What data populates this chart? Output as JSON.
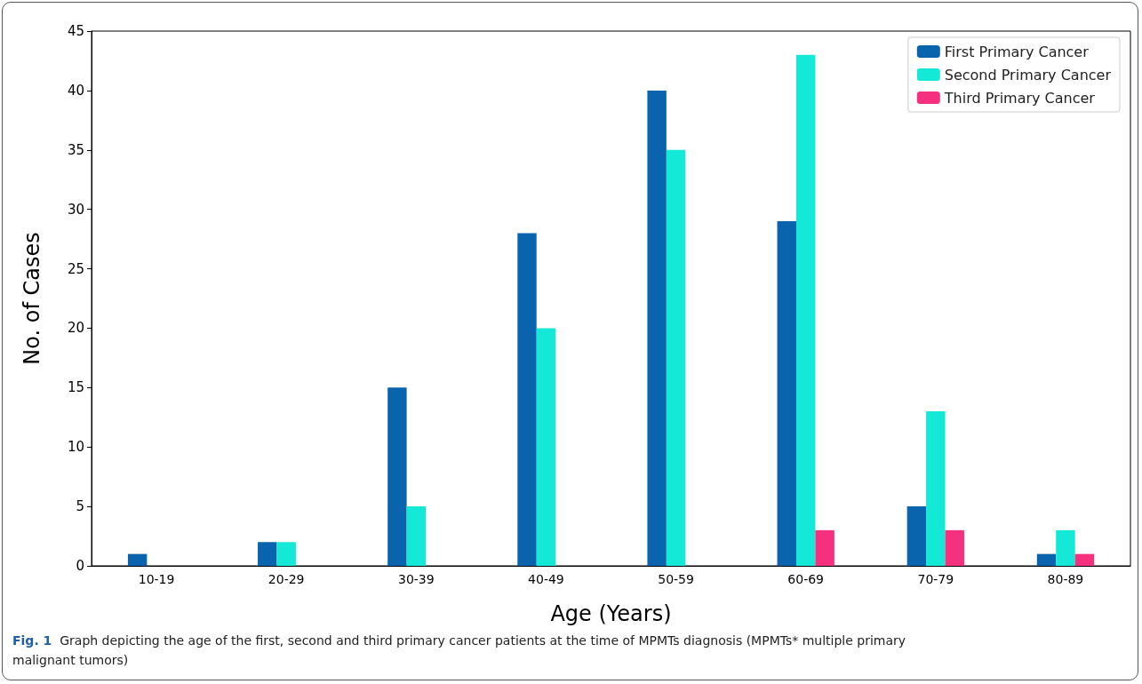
{
  "chart_data": {
    "type": "bar",
    "xlabel": "Age (Years)",
    "ylabel": "No. of Cases",
    "categories": [
      "10-19",
      "20-29",
      "30-39",
      "40-49",
      "50-59",
      "60-69",
      "70-79",
      "80-89"
    ],
    "series": [
      {
        "name": "First Primary Cancer",
        "color": "#0a64ad",
        "values": [
          1,
          2,
          15,
          28,
          40,
          29,
          5,
          1
        ]
      },
      {
        "name": "Second Primary Cancer",
        "color": "#14e8d6",
        "values": [
          0,
          2,
          5,
          20,
          35,
          43,
          13,
          3
        ]
      },
      {
        "name": "Third Primary Cancer",
        "color": "#f5307f",
        "values": [
          0,
          0,
          0,
          0,
          0,
          3,
          3,
          1
        ]
      }
    ],
    "ylim": [
      0,
      45
    ],
    "yticks": [
      0,
      5,
      10,
      15,
      20,
      25,
      30,
      35,
      40,
      45
    ],
    "legend": "top right",
    "annotations": [
      "Fig. 1 Graph depicting the age of the first, second and third primary cancer patients at the time of MPMTs diagnosis (MPMTs* multiple primary malignant tumors)"
    ]
  }
}
